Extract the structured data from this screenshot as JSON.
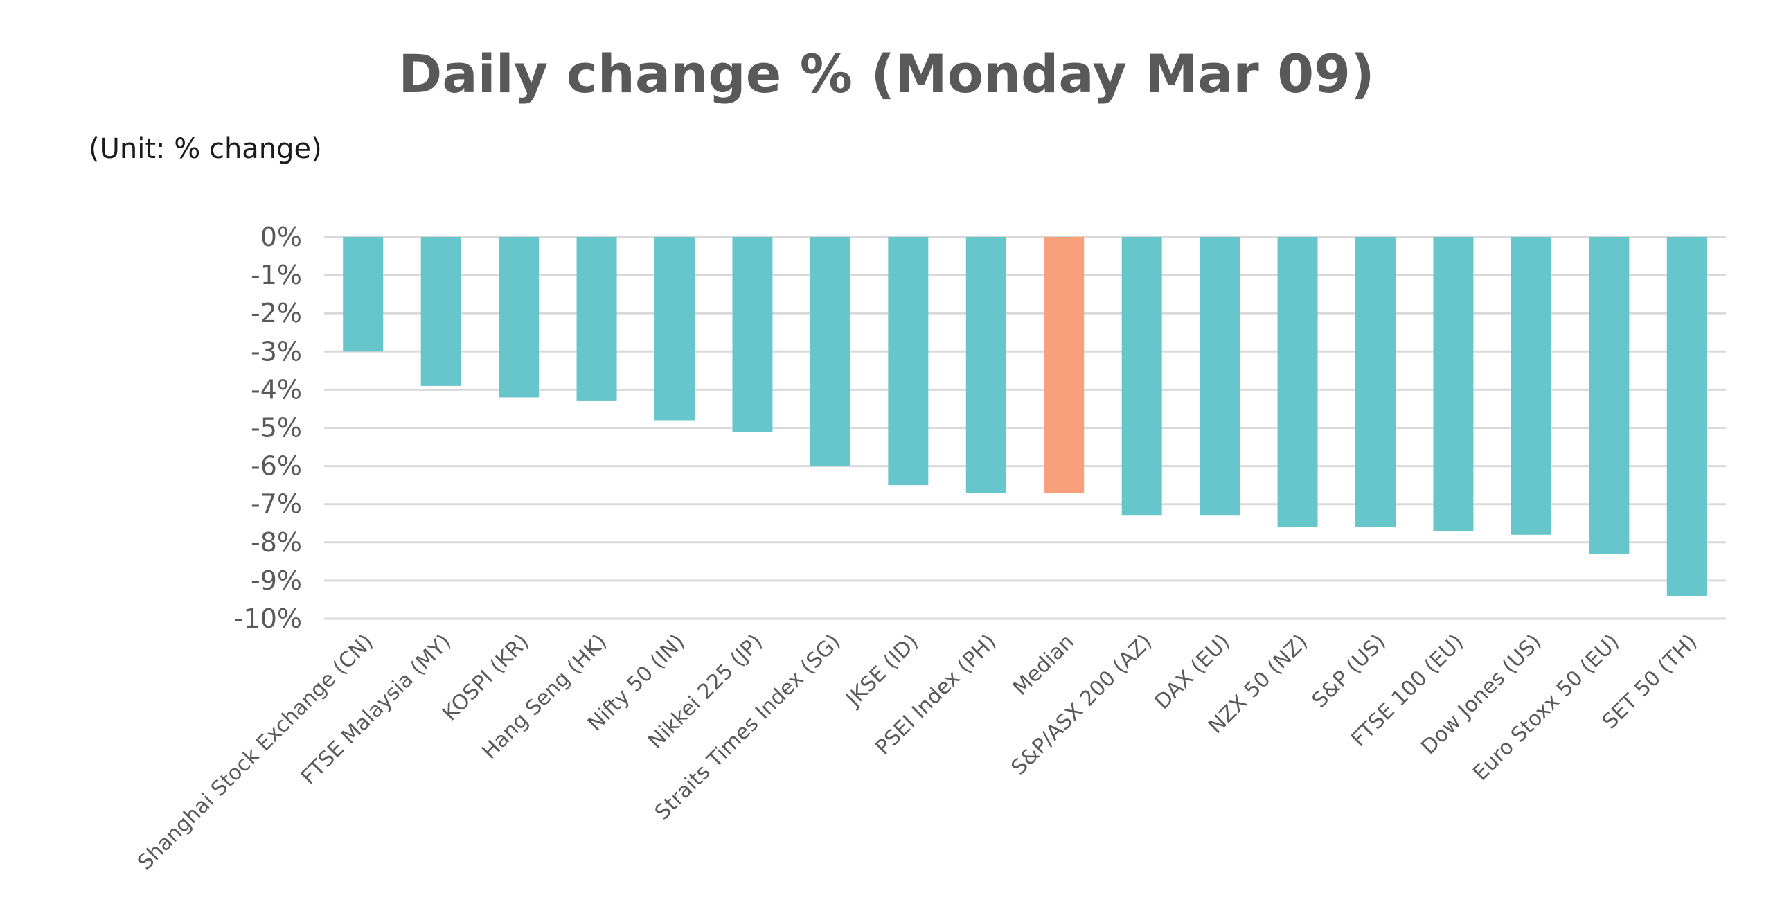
{
  "chart_data": {
    "type": "bar",
    "title": "Daily change % (Monday Mar 09)",
    "subtitle": "(Unit: % change)",
    "xlabel": "",
    "ylabel": "",
    "ylim": [
      -10,
      0
    ],
    "yticks": [
      0,
      -1,
      -2,
      -3,
      -4,
      -5,
      -6,
      -7,
      -8,
      -9,
      -10
    ],
    "ytick_labels": [
      "0%",
      "-1%",
      "-2%",
      "-3%",
      "-4%",
      "-5%",
      "-6%",
      "-7%",
      "-8%",
      "-9%",
      "-10%"
    ],
    "grid": true,
    "legend": "none",
    "categories": [
      "Shanghai Stock Exchange (CN)",
      "FTSE Malaysia (MY)",
      "KOSPI (KR)",
      "Hang Seng (HK)",
      "Nifty 50 (IN)",
      "Nikkei 225 (JP)",
      "Straits Times Index (SG)",
      "JKSE (ID)",
      "PSEI Index (PH)",
      "Median",
      "S&P/ASX 200 (AZ)",
      "DAX (EU)",
      "NZX 50 (NZ)",
      "S&P (US)",
      "FTSE 100 (EU)",
      "Dow Jones (US)",
      "Euro Stoxx 50 (EU)",
      "SET 50 (TH)"
    ],
    "values": [
      -3.0,
      -3.9,
      -4.2,
      -4.3,
      -4.8,
      -5.1,
      -6.0,
      -6.5,
      -6.7,
      -6.7,
      -7.3,
      -7.3,
      -7.6,
      -7.6,
      -7.7,
      -7.8,
      -8.3,
      -9.4
    ],
    "highlight_category": "Median",
    "colors": {
      "bar": "#67c5cc",
      "highlight": "#f7a07b",
      "grid": "#d9d9d9"
    }
  }
}
